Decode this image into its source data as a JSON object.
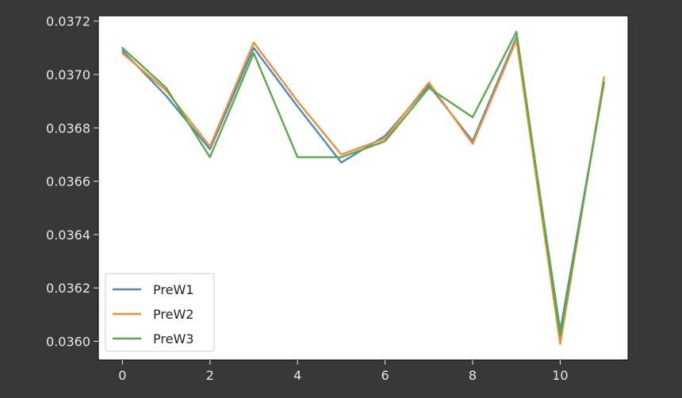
{
  "chart_data": {
    "type": "line",
    "x": [
      0,
      1,
      2,
      3,
      4,
      5,
      6,
      7,
      8,
      9,
      10,
      11
    ],
    "xticks": [
      0,
      2,
      4,
      6,
      8,
      10
    ],
    "xlim": [
      -0.55,
      11.55
    ],
    "yticks": [
      "0.0360",
      "0.0362",
      "0.0364",
      "0.0366",
      "0.0368",
      "0.0370",
      "0.0372"
    ],
    "ylim": [
      0.03593,
      0.03722
    ],
    "grid": false,
    "legend_position": "lower-left",
    "series": [
      {
        "name": "PreW1",
        "color": "#4c88c4",
        "values": [
          0.03709,
          0.03692,
          0.03672,
          0.0371,
          0.03688,
          0.03667,
          0.03677,
          0.03696,
          0.03675,
          0.03714,
          0.03604,
          0.03697
        ]
      },
      {
        "name": "PreW2",
        "color": "#f38e30",
        "values": [
          0.03708,
          0.03694,
          0.03673,
          0.03712,
          0.0369,
          0.0367,
          0.03676,
          0.03697,
          0.03674,
          0.03713,
          0.03599,
          0.03699
        ]
      },
      {
        "name": "PreW3",
        "color": "#5aaa4a",
        "values": [
          0.0371,
          0.03695,
          0.03669,
          0.03708,
          0.03669,
          0.03669,
          0.03675,
          0.03695,
          0.03684,
          0.03716,
          0.03602,
          0.03697
        ]
      }
    ]
  }
}
